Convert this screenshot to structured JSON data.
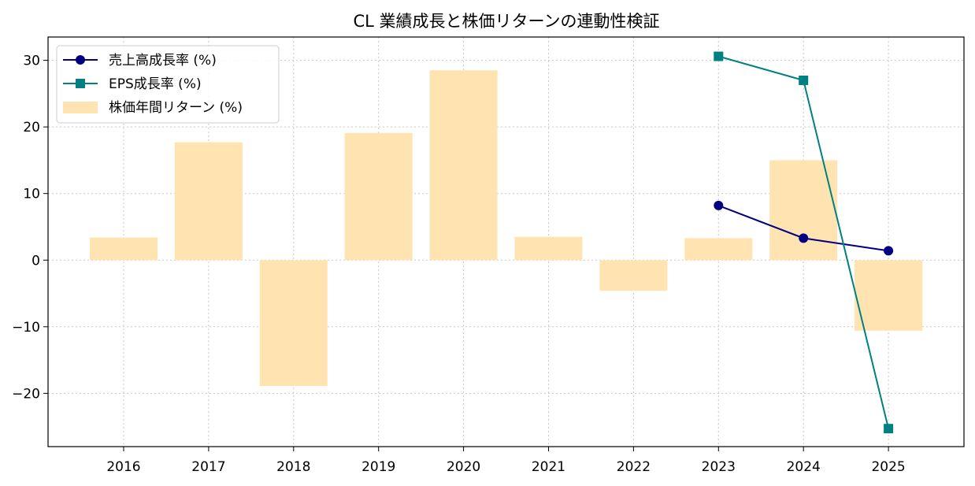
{
  "chart_data": {
    "type": "bar",
    "title": "CL 業績成長と株価リターンの連動性検証",
    "categories": [
      "2016",
      "2017",
      "2018",
      "2019",
      "2020",
      "2021",
      "2022",
      "2023",
      "2024",
      "2025"
    ],
    "ylim": [
      -28,
      33.5
    ],
    "yticks": [
      -20,
      -10,
      0,
      10,
      20,
      30
    ],
    "ytick_labels": [
      "−20",
      "−10",
      "0",
      "10",
      "20",
      "30"
    ],
    "grid": true,
    "legend_position": "top-left",
    "series": [
      {
        "name": "売上高成長率 (%)",
        "type": "line",
        "marker": "circle",
        "color": "#000080",
        "values": [
          null,
          null,
          null,
          null,
          null,
          null,
          null,
          8.2,
          3.3,
          1.4
        ]
      },
      {
        "name": "EPS成長率 (%)",
        "type": "line",
        "marker": "square",
        "color": "#008080",
        "values": [
          null,
          null,
          null,
          null,
          null,
          null,
          null,
          30.6,
          27.0,
          -25.3
        ]
      },
      {
        "name": "株価年間リターン (%)",
        "type": "bar",
        "color": "#ffe4b2",
        "values": [
          3.4,
          17.7,
          -18.9,
          19.1,
          28.5,
          3.5,
          -4.6,
          3.3,
          15.0,
          -10.6
        ]
      }
    ]
  }
}
